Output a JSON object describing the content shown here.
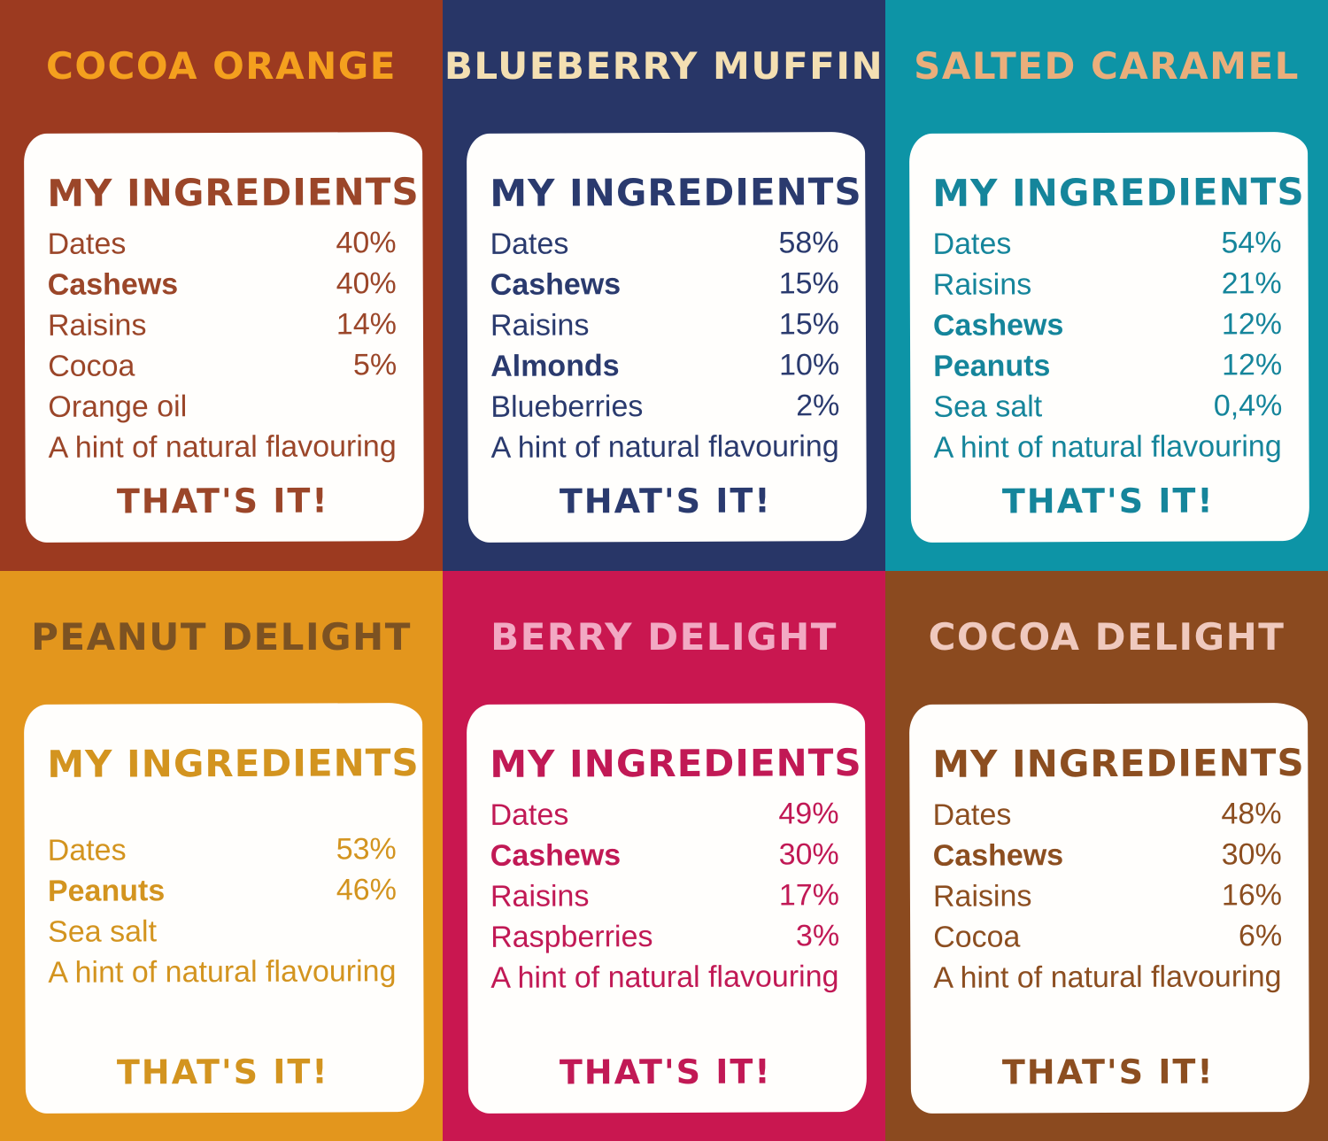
{
  "panels": [
    {
      "id": "cocoa-orange",
      "title": "COCOA ORANGE",
      "bg_color": "#9C3A20",
      "title_color": "#F4A01E",
      "text_color": "#9B4629",
      "ingredients_heading": "MY INGREDIENTS",
      "ingredients": [
        {
          "name": "Dates",
          "amount": "40%",
          "bold": false
        },
        {
          "name": "Cashews",
          "amount": "40%",
          "bold": true
        },
        {
          "name": "Raisins",
          "amount": "14%",
          "bold": false
        },
        {
          "name": "Cocoa",
          "amount": "5%",
          "bold": false
        },
        {
          "name": "Orange oil",
          "amount": "",
          "bold": false
        },
        {
          "name": "A hint of natural flavouring",
          "amount": "",
          "bold": false
        }
      ],
      "closing": "THAT'S IT!",
      "gap_after_heading": false
    },
    {
      "id": "blueberry-muffin",
      "title": "BLUEBERRY MUFFIN",
      "bg_color": "#283667",
      "title_color": "#F3DFB2",
      "text_color": "#2A3A6E",
      "ingredients_heading": "MY INGREDIENTS",
      "ingredients": [
        {
          "name": "Dates",
          "amount": "58%",
          "bold": false
        },
        {
          "name": "Cashews",
          "amount": "15%",
          "bold": true
        },
        {
          "name": "Raisins",
          "amount": "15%",
          "bold": false
        },
        {
          "name": "Almonds",
          "amount": "10%",
          "bold": true
        },
        {
          "name": "Blueberries",
          "amount": "2%",
          "bold": false
        },
        {
          "name": "A hint of natural flavouring",
          "amount": "",
          "bold": false
        }
      ],
      "closing": "THAT'S IT!",
      "gap_after_heading": false
    },
    {
      "id": "salted-caramel",
      "title": "SALTED CARAMEL",
      "bg_color": "#0D94A6",
      "title_color": "#EAAE7B",
      "text_color": "#15859B",
      "ingredients_heading": "MY INGREDIENTS",
      "ingredients": [
        {
          "name": "Dates",
          "amount": "54%",
          "bold": false
        },
        {
          "name": "Raisins",
          "amount": "21%",
          "bold": false
        },
        {
          "name": "Cashews",
          "amount": "12%",
          "bold": true
        },
        {
          "name": "Peanuts",
          "amount": "12%",
          "bold": true
        },
        {
          "name": "Sea salt",
          "amount": "0,4%",
          "bold": false
        },
        {
          "name": "A hint of natural flavouring",
          "amount": "",
          "bold": false
        }
      ],
      "closing": "THAT'S IT!",
      "gap_after_heading": false
    },
    {
      "id": "peanut-delight",
      "title": "PEANUT DELIGHT",
      "bg_color": "#E3961D",
      "title_color": "#7C5222",
      "text_color": "#D3941F",
      "ingredients_heading": "MY INGREDIENTS",
      "ingredients": [
        {
          "name": "Dates",
          "amount": "53%",
          "bold": false
        },
        {
          "name": "Peanuts",
          "amount": "46%",
          "bold": true
        },
        {
          "name": "Sea salt",
          "amount": "",
          "bold": false
        },
        {
          "name": "A hint of natural flavouring",
          "amount": "",
          "bold": false
        }
      ],
      "closing": "THAT'S IT!",
      "gap_after_heading": true
    },
    {
      "id": "berry-delight",
      "title": "BERRY DELIGHT",
      "bg_color": "#C91750",
      "title_color": "#F2A9C3",
      "text_color": "#C11955",
      "ingredients_heading": "MY INGREDIENTS",
      "ingredients": [
        {
          "name": "Dates",
          "amount": "49%",
          "bold": false
        },
        {
          "name": "Cashews",
          "amount": "30%",
          "bold": true
        },
        {
          "name": "Raisins",
          "amount": "17%",
          "bold": false
        },
        {
          "name": "Raspberries",
          "amount": "3%",
          "bold": false
        },
        {
          "name": "A hint of natural flavouring",
          "amount": "",
          "bold": false
        }
      ],
      "closing": "THAT'S IT!",
      "gap_after_heading": false
    },
    {
      "id": "cocoa-delight",
      "title": "COCOA DELIGHT",
      "bg_color": "#8B4A1F",
      "title_color": "#EFC9BE",
      "text_color": "#8C4E20",
      "ingredients_heading": "MY INGREDIENTS",
      "ingredients": [
        {
          "name": "Dates",
          "amount": "48%",
          "bold": false
        },
        {
          "name": "Cashews",
          "amount": "30%",
          "bold": true
        },
        {
          "name": "Raisins",
          "amount": "16%",
          "bold": false
        },
        {
          "name": "Cocoa",
          "amount": "6%",
          "bold": false
        },
        {
          "name": "A hint of natural flavouring",
          "amount": "",
          "bold": false
        }
      ],
      "closing": "THAT'S IT!",
      "gap_after_heading": false
    }
  ]
}
